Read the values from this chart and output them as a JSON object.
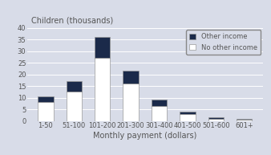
{
  "categories": [
    "1-50",
    "51-100",
    "101-200",
    "201-300",
    "301-400",
    "401-500",
    "501-600",
    "601+"
  ],
  "no_other_income": [
    8,
    12.5,
    27,
    16,
    6.5,
    3,
    1,
    0.5
  ],
  "other_income": [
    2.5,
    4.5,
    9,
    5.5,
    2.5,
    1,
    0.5,
    0.3
  ],
  "color_no_other": "#ffffff",
  "color_other": "#1b2a4a",
  "bar_edge_color": "#999999",
  "background_color": "#d8dce8",
  "ylabel": "Children (thousands)",
  "xlabel": "Monthly payment (dollars)",
  "ylim": [
    0,
    40
  ],
  "yticks": [
    0,
    5,
    10,
    15,
    20,
    25,
    30,
    35,
    40
  ],
  "legend_labels": [
    "Other income",
    "No other income"
  ],
  "axis_fontsize": 7,
  "tick_fontsize": 6
}
